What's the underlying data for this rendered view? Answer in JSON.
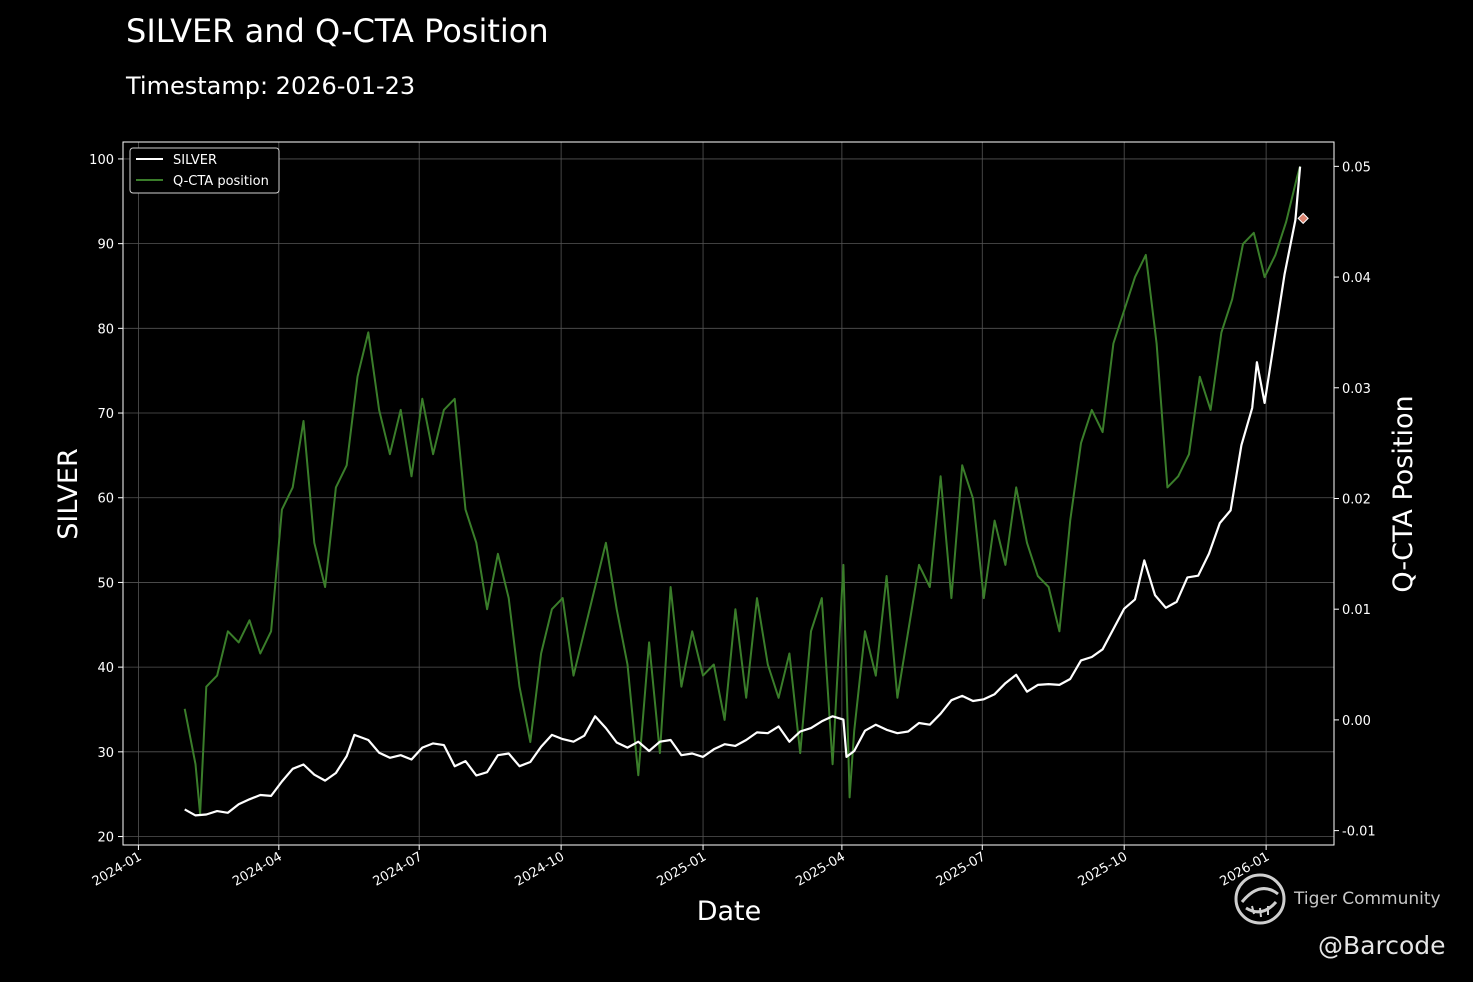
{
  "header": {
    "title": "SILVER and Q-CTA Position",
    "subtitle": "Timestamp: 2026-01-23"
  },
  "watermark": {
    "brand": "Tiger Community",
    "handle": "@Barcode"
  },
  "colors": {
    "background": "#000000",
    "silver_line": "#ffffff",
    "qcta_line": "#3a7d2a",
    "marker": "#d9826e",
    "grid": "#555555"
  },
  "chart_data": {
    "type": "line",
    "title": "SILVER and Q-CTA Position",
    "subtitle": "Timestamp: 2026-01-23",
    "xlabel": "Date",
    "ylabel": "SILVER",
    "y2label": "Q-CTA Position",
    "grid": true,
    "legend": "top-left",
    "xlim": [
      "2023-12-22",
      "2026-02-14"
    ],
    "ylim": [
      19,
      102
    ],
    "y2lim": [
      -0.0113,
      0.0522
    ],
    "x_ticks": [
      "2024-01",
      "2024-04",
      "2024-07",
      "2024-10",
      "2025-01",
      "2025-04",
      "2025-07",
      "2025-10",
      "2026-01"
    ],
    "y_ticks": [
      20,
      30,
      40,
      50,
      60,
      70,
      80,
      90,
      100
    ],
    "y2_ticks": [
      "-0.01",
      "0.00",
      "0.01",
      "0.02",
      "0.03",
      "0.04",
      "0.05"
    ],
    "series": [
      {
        "name": "SILVER",
        "axis": "left",
        "points": [
          [
            "2024-01-31",
            23.2
          ],
          [
            "2024-02-07",
            22.5
          ],
          [
            "2024-02-14",
            22.6
          ],
          [
            "2024-02-21",
            23.0
          ],
          [
            "2024-02-28",
            22.8
          ],
          [
            "2024-03-06",
            23.8
          ],
          [
            "2024-03-13",
            24.4
          ],
          [
            "2024-03-20",
            24.9
          ],
          [
            "2024-03-27",
            24.8
          ],
          [
            "2024-04-03",
            26.5
          ],
          [
            "2024-04-10",
            28.0
          ],
          [
            "2024-04-17",
            28.5
          ],
          [
            "2024-04-24",
            27.3
          ],
          [
            "2024-05-01",
            26.6
          ],
          [
            "2024-05-08",
            27.5
          ],
          [
            "2024-05-15",
            29.5
          ],
          [
            "2024-05-20",
            32.0
          ],
          [
            "2024-05-29",
            31.4
          ],
          [
            "2024-06-05",
            29.9
          ],
          [
            "2024-06-12",
            29.3
          ],
          [
            "2024-06-19",
            29.6
          ],
          [
            "2024-06-26",
            29.1
          ],
          [
            "2024-07-03",
            30.5
          ],
          [
            "2024-07-10",
            31.0
          ],
          [
            "2024-07-17",
            30.8
          ],
          [
            "2024-07-24",
            28.3
          ],
          [
            "2024-07-31",
            28.9
          ],
          [
            "2024-08-07",
            27.2
          ],
          [
            "2024-08-14",
            27.6
          ],
          [
            "2024-08-21",
            29.6
          ],
          [
            "2024-08-28",
            29.8
          ],
          [
            "2024-09-04",
            28.3
          ],
          [
            "2024-09-11",
            28.8
          ],
          [
            "2024-09-18",
            30.6
          ],
          [
            "2024-09-25",
            32.0
          ],
          [
            "2024-10-02",
            31.5
          ],
          [
            "2024-10-09",
            31.2
          ],
          [
            "2024-10-16",
            31.9
          ],
          [
            "2024-10-23",
            34.2
          ],
          [
            "2024-10-30",
            32.8
          ],
          [
            "2024-11-06",
            31.1
          ],
          [
            "2024-11-13",
            30.5
          ],
          [
            "2024-11-20",
            31.2
          ],
          [
            "2024-11-27",
            30.1
          ],
          [
            "2024-12-04",
            31.2
          ],
          [
            "2024-12-11",
            31.4
          ],
          [
            "2024-12-18",
            29.6
          ],
          [
            "2024-12-25",
            29.8
          ],
          [
            "2025-01-01",
            29.4
          ],
          [
            "2025-01-08",
            30.3
          ],
          [
            "2025-01-15",
            30.9
          ],
          [
            "2025-01-22",
            30.7
          ],
          [
            "2025-01-29",
            31.4
          ],
          [
            "2025-02-05",
            32.3
          ],
          [
            "2025-02-12",
            32.2
          ],
          [
            "2025-02-19",
            33.0
          ],
          [
            "2025-02-26",
            31.2
          ],
          [
            "2025-03-05",
            32.4
          ],
          [
            "2025-03-12",
            32.8
          ],
          [
            "2025-03-19",
            33.6
          ],
          [
            "2025-03-26",
            34.2
          ],
          [
            "2025-04-02",
            33.8
          ],
          [
            "2025-04-04",
            29.4
          ],
          [
            "2025-04-09",
            30.1
          ],
          [
            "2025-04-16",
            32.5
          ],
          [
            "2025-04-23",
            33.2
          ],
          [
            "2025-04-30",
            32.6
          ],
          [
            "2025-05-07",
            32.2
          ],
          [
            "2025-05-14",
            32.4
          ],
          [
            "2025-05-21",
            33.4
          ],
          [
            "2025-05-28",
            33.2
          ],
          [
            "2025-06-04",
            34.5
          ],
          [
            "2025-06-11",
            36.1
          ],
          [
            "2025-06-18",
            36.6
          ],
          [
            "2025-06-25",
            36.0
          ],
          [
            "2025-07-02",
            36.2
          ],
          [
            "2025-07-09",
            36.8
          ],
          [
            "2025-07-16",
            38.1
          ],
          [
            "2025-07-23",
            39.1
          ],
          [
            "2025-07-30",
            37.1
          ],
          [
            "2025-08-06",
            37.9
          ],
          [
            "2025-08-13",
            38.0
          ],
          [
            "2025-08-20",
            37.9
          ],
          [
            "2025-08-27",
            38.6
          ],
          [
            "2025-09-03",
            40.8
          ],
          [
            "2025-09-10",
            41.2
          ],
          [
            "2025-09-17",
            42.1
          ],
          [
            "2025-09-24",
            44.5
          ],
          [
            "2025-10-01",
            46.9
          ],
          [
            "2025-10-08",
            48.0
          ],
          [
            "2025-10-14",
            52.6
          ],
          [
            "2025-10-21",
            48.5
          ],
          [
            "2025-10-28",
            47.0
          ],
          [
            "2025-11-04",
            47.7
          ],
          [
            "2025-11-11",
            50.6
          ],
          [
            "2025-11-18",
            50.8
          ],
          [
            "2025-11-25",
            53.4
          ],
          [
            "2025-12-02",
            57.0
          ],
          [
            "2025-12-09",
            58.5
          ],
          [
            "2025-12-16",
            66.2
          ],
          [
            "2025-12-23",
            70.6
          ],
          [
            "2025-12-26",
            76.0
          ],
          [
            "2025-12-31",
            71.2
          ],
          [
            "2026-01-06",
            78.2
          ],
          [
            "2026-01-13",
            86.4
          ],
          [
            "2026-01-20",
            92.8
          ],
          [
            "2026-01-23",
            99.1
          ]
        ]
      },
      {
        "name": "Q-CTA position",
        "axis": "right",
        "points": [
          [
            "2024-01-31",
            0.001
          ],
          [
            "2024-02-07",
            -0.004
          ],
          [
            "2024-02-10",
            -0.0085
          ],
          [
            "2024-02-14",
            0.003
          ],
          [
            "2024-02-21",
            0.004
          ],
          [
            "2024-02-28",
            0.008
          ],
          [
            "2024-03-06",
            0.007
          ],
          [
            "2024-03-13",
            0.009
          ],
          [
            "2024-03-20",
            0.006
          ],
          [
            "2024-03-27",
            0.008
          ],
          [
            "2024-04-03",
            0.019
          ],
          [
            "2024-04-10",
            0.021
          ],
          [
            "2024-04-17",
            0.027
          ],
          [
            "2024-04-24",
            0.016
          ],
          [
            "2024-05-01",
            0.012
          ],
          [
            "2024-05-08",
            0.021
          ],
          [
            "2024-05-15",
            0.023
          ],
          [
            "2024-05-22",
            0.031
          ],
          [
            "2024-05-29",
            0.035
          ],
          [
            "2024-06-05",
            0.028
          ],
          [
            "2024-06-12",
            0.024
          ],
          [
            "2024-06-19",
            0.028
          ],
          [
            "2024-06-26",
            0.022
          ],
          [
            "2024-07-03",
            0.029
          ],
          [
            "2024-07-10",
            0.024
          ],
          [
            "2024-07-17",
            0.028
          ],
          [
            "2024-07-24",
            0.029
          ],
          [
            "2024-07-31",
            0.019
          ],
          [
            "2024-08-07",
            0.016
          ],
          [
            "2024-08-14",
            0.01
          ],
          [
            "2024-08-21",
            0.015
          ],
          [
            "2024-08-28",
            0.011
          ],
          [
            "2024-09-04",
            0.003
          ],
          [
            "2024-09-11",
            -0.002
          ],
          [
            "2024-09-18",
            0.006
          ],
          [
            "2024-09-25",
            0.01
          ],
          [
            "2024-10-02",
            0.011
          ],
          [
            "2024-10-09",
            0.004
          ],
          [
            "2024-10-16",
            0.008
          ],
          [
            "2024-10-23",
            0.012
          ],
          [
            "2024-10-30",
            0.016
          ],
          [
            "2024-11-06",
            0.01
          ],
          [
            "2024-11-13",
            0.005
          ],
          [
            "2024-11-20",
            -0.005
          ],
          [
            "2024-11-27",
            0.007
          ],
          [
            "2024-12-04",
            -0.003
          ],
          [
            "2024-12-11",
            0.012
          ],
          [
            "2024-12-18",
            0.003
          ],
          [
            "2024-12-25",
            0.008
          ],
          [
            "2025-01-01",
            0.004
          ],
          [
            "2025-01-08",
            0.005
          ],
          [
            "2025-01-15",
            0.0
          ],
          [
            "2025-01-22",
            0.01
          ],
          [
            "2025-01-29",
            0.002
          ],
          [
            "2025-02-05",
            0.011
          ],
          [
            "2025-02-12",
            0.005
          ],
          [
            "2025-02-19",
            0.002
          ],
          [
            "2025-02-26",
            0.006
          ],
          [
            "2025-03-05",
            -0.003
          ],
          [
            "2025-03-12",
            0.008
          ],
          [
            "2025-03-19",
            0.011
          ],
          [
            "2025-03-26",
            -0.004
          ],
          [
            "2025-04-02",
            0.014
          ],
          [
            "2025-04-06",
            -0.007
          ],
          [
            "2025-04-09",
            -0.001
          ],
          [
            "2025-04-16",
            0.008
          ],
          [
            "2025-04-23",
            0.004
          ],
          [
            "2025-04-30",
            0.013
          ],
          [
            "2025-05-07",
            0.002
          ],
          [
            "2025-05-14",
            0.008
          ],
          [
            "2025-05-21",
            0.014
          ],
          [
            "2025-05-28",
            0.012
          ],
          [
            "2025-06-04",
            0.022
          ],
          [
            "2025-06-11",
            0.011
          ],
          [
            "2025-06-18",
            0.023
          ],
          [
            "2025-06-25",
            0.02
          ],
          [
            "2025-07-02",
            0.011
          ],
          [
            "2025-07-09",
            0.018
          ],
          [
            "2025-07-16",
            0.014
          ],
          [
            "2025-07-23",
            0.021
          ],
          [
            "2025-07-30",
            0.016
          ],
          [
            "2025-08-06",
            0.013
          ],
          [
            "2025-08-13",
            0.012
          ],
          [
            "2025-08-20",
            0.008
          ],
          [
            "2025-08-27",
            0.018
          ],
          [
            "2025-09-03",
            0.025
          ],
          [
            "2025-09-10",
            0.028
          ],
          [
            "2025-09-17",
            0.026
          ],
          [
            "2025-09-24",
            0.034
          ],
          [
            "2025-10-01",
            0.037
          ],
          [
            "2025-10-08",
            0.04
          ],
          [
            "2025-10-15",
            0.042
          ],
          [
            "2025-10-22",
            0.034
          ],
          [
            "2025-10-29",
            0.021
          ],
          [
            "2025-11-05",
            0.022
          ],
          [
            "2025-11-12",
            0.024
          ],
          [
            "2025-11-19",
            0.031
          ],
          [
            "2025-11-26",
            0.028
          ],
          [
            "2025-12-03",
            0.035
          ],
          [
            "2025-12-10",
            0.038
          ],
          [
            "2025-12-17",
            0.043
          ],
          [
            "2025-12-24",
            0.044
          ],
          [
            "2025-12-31",
            0.04
          ],
          [
            "2026-01-07",
            0.042
          ],
          [
            "2026-01-14",
            0.045
          ],
          [
            "2026-01-21",
            0.049
          ],
          [
            "2026-01-23",
            0.05
          ]
        ]
      }
    ],
    "marker": {
      "date": "2026-01-25",
      "value": 0.0453,
      "axis": "right"
    }
  }
}
